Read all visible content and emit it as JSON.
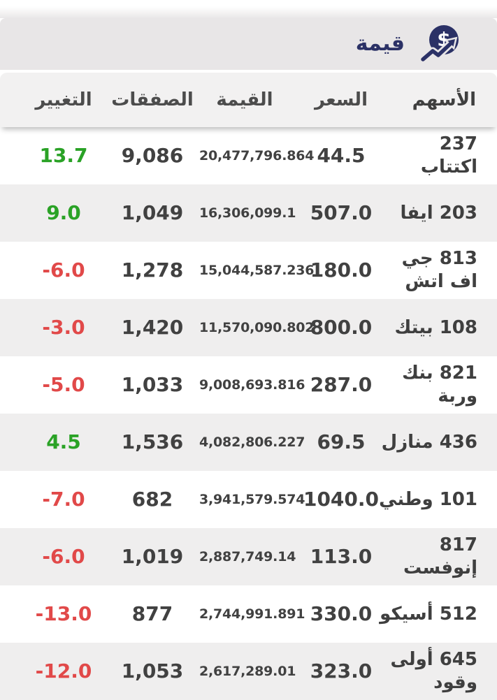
{
  "header": {
    "title": "قيمة",
    "icon": "dollar-growth-icon",
    "icon_symbol": "$"
  },
  "table": {
    "columns": {
      "stocks": "الأسهم",
      "price": "السعر",
      "value": "القيمة",
      "deals": "الصفقات",
      "change": "التغيير"
    },
    "rows": [
      {
        "name_lines": [
          "237",
          "اكتتاب"
        ],
        "price": "44.5",
        "value": "20,477,796.864",
        "deals": "9,086",
        "change": "13.7"
      },
      {
        "name_lines": [
          "203 ايفا"
        ],
        "price": "507.0",
        "value": "16,306,099.1",
        "deals": "1,049",
        "change": "9.0"
      },
      {
        "name_lines": [
          "813 جي",
          "اف اتش"
        ],
        "price": "180.0",
        "value": "15,044,587.236",
        "deals": "1,278",
        "change": "-6.0"
      },
      {
        "name_lines": [
          "108 بيتك"
        ],
        "price": "800.0",
        "value": "11,570,090.802",
        "deals": "1,420",
        "change": "-3.0"
      },
      {
        "name_lines": [
          "821 بنك",
          "وربة"
        ],
        "price": "287.0",
        "value": "9,008,693.816",
        "deals": "1,033",
        "change": "-5.0"
      },
      {
        "name_lines": [
          "436 منازل"
        ],
        "price": "69.5",
        "value": "4,082,806.227",
        "deals": "1,536",
        "change": "4.5"
      },
      {
        "name_lines": [
          "101 وطني"
        ],
        "price": "1040.0",
        "value": "3,941,579.574",
        "deals": "682",
        "change": "-7.0"
      },
      {
        "name_lines": [
          "817",
          "إنوفست"
        ],
        "price": "113.0",
        "value": "2,887,749.14",
        "deals": "1,019",
        "change": "-6.0"
      },
      {
        "name_lines": [
          "512 أسيكو"
        ],
        "price": "330.0",
        "value": "2,744,991.891",
        "deals": "877",
        "change": "-13.0"
      },
      {
        "name_lines": [
          "645 أولى",
          "وقود"
        ],
        "price": "323.0",
        "value": "2,617,289.01",
        "deals": "1,053",
        "change": "-12.0"
      }
    ]
  },
  "colors": {
    "navy": "#2b3166",
    "green": "#2aa226",
    "red": "#e14949",
    "title_bar_bg": "#e8e6e7",
    "header_row_bg": "#f2f1f1",
    "stripe_row_bg": "#efeeee"
  }
}
